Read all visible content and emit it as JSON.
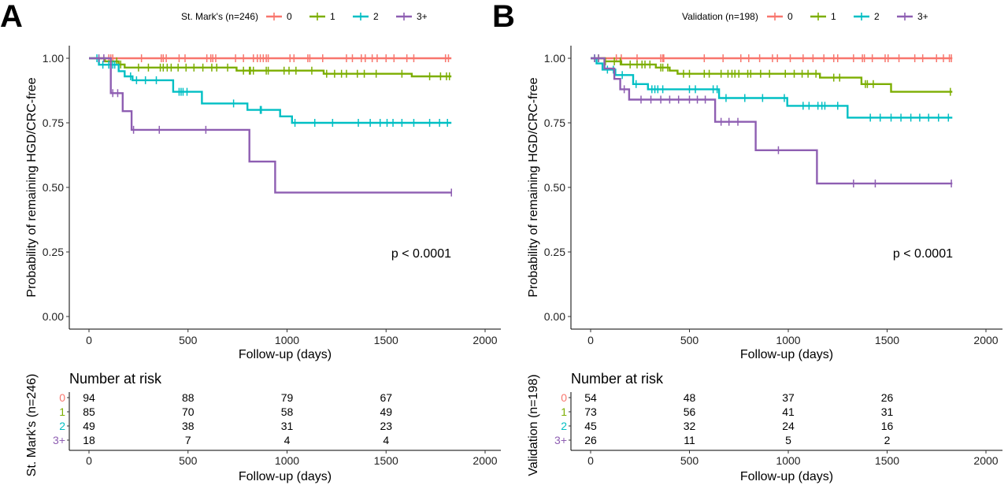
{
  "chart_data": [
    {
      "type": "line",
      "panel_letter": "A",
      "legend_title": "St. Mark's (n=246)",
      "legend_placement": "top",
      "xlabel": "Follow-up (days)",
      "ylabel": "Probability of remaining HGD/CRC-free",
      "xlim": [
        0,
        2000
      ],
      "ylim": [
        0,
        1
      ],
      "x_ticks": [
        "0",
        "500",
        "1000",
        "1500",
        "2000"
      ],
      "y_ticks": [
        "0.00",
        "0.25",
        "0.50",
        "0.75",
        "1.00"
      ],
      "grid": false,
      "annotation": "p < 0.0001",
      "series": [
        {
          "name": "0",
          "color": "#F8766D",
          "steps": [
            [
              0,
              1.0
            ],
            [
              1830,
              1.0
            ]
          ],
          "censor_x": [
            100,
            110,
            120,
            265,
            365,
            375,
            390,
            455,
            485,
            595,
            615,
            625,
            640,
            740,
            780,
            830,
            850,
            865,
            880,
            895,
            905,
            1015,
            1035,
            1105,
            1115,
            1180,
            1300,
            1330,
            1375,
            1395,
            1430,
            1455,
            1500,
            1540,
            1605,
            1640,
            1800,
            1815
          ]
        },
        {
          "name": "1",
          "color": "#7CAE00",
          "steps": [
            [
              0,
              1.0
            ],
            [
              80,
              0.988
            ],
            [
              150,
              0.976
            ],
            [
              180,
              0.964
            ],
            [
              745,
              0.952
            ],
            [
              1185,
              0.94
            ],
            [
              1630,
              0.93
            ],
            [
              1830,
              0.93
            ]
          ],
          "censor_x": [
            110,
            140,
            160,
            250,
            300,
            360,
            375,
            395,
            415,
            450,
            490,
            530,
            575,
            620,
            645,
            700,
            780,
            810,
            815,
            830,
            895,
            905,
            985,
            1010,
            1045,
            1125,
            1200,
            1240,
            1275,
            1300,
            1355,
            1390,
            1450,
            1580,
            1720,
            1775,
            1805,
            1820
          ]
        },
        {
          "name": "2",
          "color": "#00BFC4",
          "steps": [
            [
              0,
              1.0
            ],
            [
              50,
              0.975
            ],
            [
              150,
              0.95
            ],
            [
              180,
              0.93
            ],
            [
              220,
              0.915
            ],
            [
              425,
              0.87
            ],
            [
              570,
              0.825
            ],
            [
              800,
              0.8
            ],
            [
              965,
              0.775
            ],
            [
              1025,
              0.75
            ],
            [
              1830,
              0.75
            ]
          ],
          "censor_x": [
            40,
            70,
            100,
            120,
            130,
            210,
            240,
            285,
            340,
            455,
            465,
            475,
            495,
            730,
            865,
            870,
            1040,
            1140,
            1230,
            1360,
            1420,
            1470,
            1505,
            1535,
            1580,
            1640,
            1720,
            1770,
            1810
          ]
        },
        {
          "name": "3+",
          "color": "#8E5EB2",
          "steps": [
            [
              0,
              1.0
            ],
            [
              110,
              0.865
            ],
            [
              170,
              0.795
            ],
            [
              215,
              0.723
            ],
            [
              810,
              0.6
            ],
            [
              940,
              0.48
            ],
            [
              1830,
              0.48
            ]
          ],
          "censor_x": [
            50,
            75,
            120,
            145,
            225,
            355,
            590,
            1830
          ]
        }
      ],
      "risk_table": {
        "title": "Number at risk",
        "side_label": "St. Mark's (n=246)",
        "xlabel": "Follow-up (days)",
        "x_ticks": [
          "0",
          "500",
          "1000",
          "1500",
          "2000"
        ],
        "time_points": [
          0,
          500,
          1000,
          1500
        ],
        "rows": [
          {
            "group": "0",
            "color": "#F8766D",
            "values": [
              "94",
              "88",
              "79",
              "67"
            ]
          },
          {
            "group": "1",
            "color": "#7CAE00",
            "values": [
              "85",
              "70",
              "58",
              "49"
            ]
          },
          {
            "group": "2",
            "color": "#00BFC4",
            "values": [
              "49",
              "38",
              "31",
              "23"
            ]
          },
          {
            "group": "3+",
            "color": "#8E5EB2",
            "values": [
              "18",
              "7",
              "4",
              "4"
            ]
          }
        ]
      }
    },
    {
      "type": "line",
      "panel_letter": "B",
      "legend_title": "Validation (n=198)",
      "legend_placement": "top",
      "xlabel": "Follow-up (days)",
      "ylabel": "Probability of remaining HGD/CRC-free",
      "xlim": [
        0,
        2000
      ],
      "ylim": [
        0,
        1
      ],
      "x_ticks": [
        "0",
        "500",
        "1000",
        "1500",
        "2000"
      ],
      "y_ticks": [
        "0.00",
        "0.25",
        "0.50",
        "0.75",
        "1.00"
      ],
      "grid": false,
      "annotation": "p < 0.0001",
      "series": [
        {
          "name": "0",
          "color": "#F8766D",
          "steps": [
            [
              0,
              1.0
            ],
            [
              1830,
              1.0
            ]
          ],
          "censor_x": [
            130,
            155,
            235,
            355,
            365,
            370,
            575,
            670,
            760,
            800,
            855,
            920,
            945,
            1010,
            1075,
            1125,
            1180,
            1230,
            1250,
            1330,
            1375,
            1385,
            1425,
            1490,
            1505,
            1560,
            1640,
            1680,
            1750,
            1785,
            1815,
            1825
          ]
        },
        {
          "name": "1",
          "color": "#7CAE00",
          "steps": [
            [
              0,
              1.0
            ],
            [
              70,
              0.988
            ],
            [
              155,
              0.976
            ],
            [
              330,
              0.964
            ],
            [
              400,
              0.952
            ],
            [
              440,
              0.94
            ],
            [
              1160,
              0.925
            ],
            [
              1370,
              0.9
            ],
            [
              1520,
              0.87
            ],
            [
              1830,
              0.87
            ]
          ],
          "censor_x": [
            40,
            75,
            120,
            150,
            200,
            235,
            260,
            275,
            300,
            355,
            365,
            390,
            470,
            500,
            575,
            600,
            660,
            695,
            715,
            730,
            750,
            795,
            810,
            860,
            905,
            985,
            1030,
            1070,
            1100,
            1140,
            1230,
            1260,
            1390,
            1400,
            1430,
            1820
          ]
        },
        {
          "name": "2",
          "color": "#00BFC4",
          "steps": [
            [
              0,
              1.0
            ],
            [
              30,
              0.98
            ],
            [
              60,
              0.956
            ],
            [
              125,
              0.935
            ],
            [
              215,
              0.9
            ],
            [
              290,
              0.88
            ],
            [
              650,
              0.846
            ],
            [
              995,
              0.816
            ],
            [
              1300,
              0.77
            ],
            [
              1830,
              0.77
            ]
          ],
          "censor_x": [
            20,
            85,
            115,
            160,
            230,
            310,
            325,
            340,
            365,
            500,
            530,
            620,
            640,
            685,
            780,
            870,
            980,
            1075,
            1105,
            1150,
            1170,
            1185,
            1250,
            1415,
            1465,
            1520,
            1570,
            1620,
            1665,
            1710,
            1760,
            1810
          ]
        },
        {
          "name": "3+",
          "color": "#8E5EB2",
          "steps": [
            [
              0,
              1.0
            ],
            [
              70,
              0.96
            ],
            [
              120,
              0.92
            ],
            [
              150,
              0.88
            ],
            [
              195,
              0.84
            ],
            [
              630,
              0.754
            ],
            [
              835,
              0.644
            ],
            [
              1145,
              0.515
            ],
            [
              1830,
              0.515
            ]
          ],
          "censor_x": [
            20,
            40,
            170,
            255,
            305,
            355,
            400,
            445,
            500,
            540,
            580,
            660,
            700,
            745,
            950,
            1330,
            1440,
            1825
          ]
        }
      ],
      "risk_table": {
        "title": "Number at risk",
        "side_label": "Validation (n=198)",
        "xlabel": "Follow-up (days)",
        "x_ticks": [
          "0",
          "500",
          "1000",
          "1500",
          "2000"
        ],
        "time_points": [
          0,
          500,
          1000,
          1500
        ],
        "rows": [
          {
            "group": "0",
            "color": "#F8766D",
            "values": [
              "54",
              "48",
              "37",
              "26"
            ]
          },
          {
            "group": "1",
            "color": "#7CAE00",
            "values": [
              "73",
              "56",
              "41",
              "31"
            ]
          },
          {
            "group": "2",
            "color": "#00BFC4",
            "values": [
              "45",
              "32",
              "24",
              "16"
            ]
          },
          {
            "group": "3+",
            "color": "#8E5EB2",
            "values": [
              "26",
              "11",
              "5",
              "2"
            ]
          }
        ]
      }
    }
  ]
}
